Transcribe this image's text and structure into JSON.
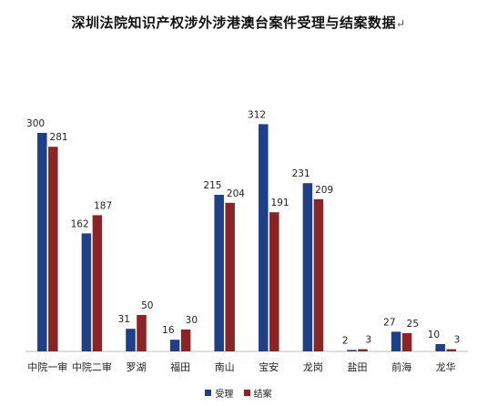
{
  "title": "深圳法院知识产权涉外涉港澳台案件受理与结案数据",
  "title_mark": "↵",
  "colors": {
    "accepted": "#1f3f86",
    "closed": "#8b2525",
    "axis": "#bfbfbf"
  },
  "chart_data": {
    "type": "bar",
    "title": "深圳法院知识产权涉外涉港澳台案件受理与结案数据",
    "categories": [
      "中院一审",
      "中院二审",
      "罗湖",
      "福田",
      "南山",
      "宝安",
      "龙岗",
      "盐田",
      "前海",
      "龙华"
    ],
    "series": [
      {
        "name": "受理",
        "values": [
          300,
          162,
          31,
          16,
          215,
          312,
          231,
          2,
          27,
          10
        ]
      },
      {
        "name": "结案",
        "values": [
          281,
          187,
          50,
          30,
          204,
          191,
          209,
          3,
          25,
          3
        ]
      }
    ],
    "ylim": [
      0,
      320
    ],
    "grid": false,
    "legend_position": "bottom",
    "xlabel": "",
    "ylabel": ""
  }
}
